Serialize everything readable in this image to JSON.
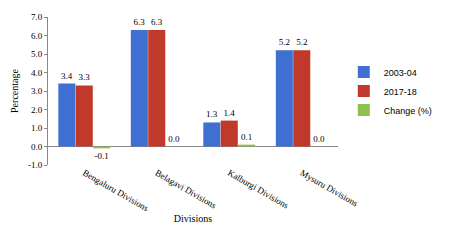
{
  "chart_data": {
    "type": "bar",
    "x_label": "Divisions",
    "y_label": "Percentage",
    "categories": [
      "Bengaluru Divisions",
      "Belagavi Divisions",
      "Kalburgi Divisions",
      "Mysuru Divisions"
    ],
    "series": [
      {
        "name": "2003-04",
        "color": "#3f6fd1",
        "values": [
          3.4,
          6.3,
          1.3,
          5.2
        ],
        "value_labels": [
          "3.4",
          "6.3",
          "1.3",
          "5.2"
        ]
      },
      {
        "name": "2017-18",
        "color": "#c0392b",
        "values": [
          3.3,
          6.3,
          1.4,
          5.2
        ],
        "value_labels": [
          "3.3",
          "6.3",
          "1.4",
          "5.2"
        ]
      },
      {
        "name": "Change (%)",
        "color": "#8fbf4f",
        "values": [
          -0.1,
          0.0,
          0.1,
          0.0
        ],
        "value_labels": [
          "-0.1",
          "0.0",
          "0.1",
          "0.0"
        ]
      }
    ],
    "ylim": [
      -1,
      7
    ],
    "yticks": [
      {
        "value": -1,
        "label": "-1.0"
      },
      {
        "value": 0,
        "label": "0.0"
      },
      {
        "value": 1,
        "label": "1.0"
      },
      {
        "value": 2,
        "label": "2.0"
      },
      {
        "value": 3,
        "label": "3.0"
      },
      {
        "value": 4,
        "label": "4.0"
      },
      {
        "value": 5,
        "label": "5.0"
      },
      {
        "value": 6,
        "label": "6.0"
      },
      {
        "value": 7,
        "label": "7.0"
      }
    ],
    "grid": false,
    "legend": "right",
    "data_labels": true
  }
}
